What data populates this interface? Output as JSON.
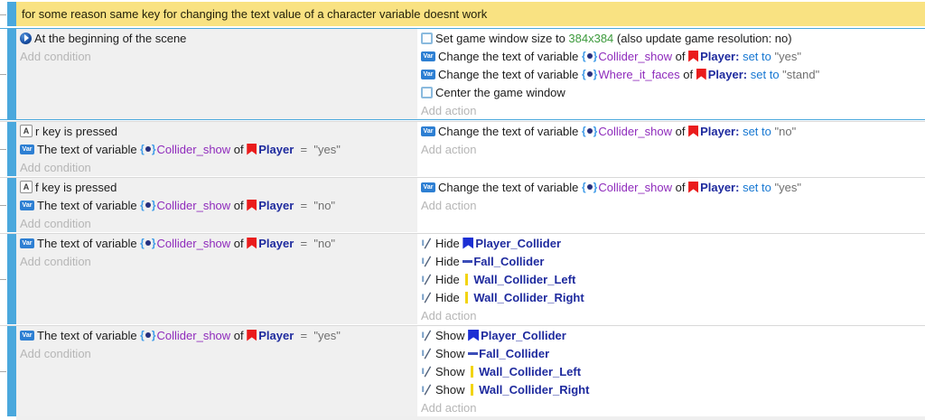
{
  "comment": {
    "text": "for some reason same key for changing the text value of a character variable doesnt work"
  },
  "labels": {
    "add_condition": "Add condition",
    "add_action": "Add action"
  },
  "icon_labels": {
    "var_badge": "Var",
    "keyboard_key": "A"
  },
  "colors": {
    "accent_blue": "#4aa8dd",
    "comment_bg": "#f9e282",
    "condition_bg": "#f0f0f0",
    "action_bg": "#ffffff",
    "variable_purple": "#8f2bbc",
    "object_navy": "#1e2a9e",
    "set_to_blue": "#1677d2",
    "value_gray": "#6f6f6f",
    "size_green": "#3c9a3c",
    "placeholder_gray": "#b6b6b6",
    "player_red": "#ea1c1c",
    "player_collider_blue": "#1c2fd4",
    "fall_collider_blue": "#3b4db8",
    "wall_collider_yellow": "#f2d411"
  },
  "events": [
    {
      "selected": true,
      "conditions": [
        {
          "runs": [
            {
              "icon": "scene-start-icon"
            },
            {
              "t": "At the beginning of the scene",
              "s": "plain"
            }
          ]
        }
      ],
      "actions": [
        {
          "runs": [
            {
              "icon": "window-icon"
            },
            {
              "t": "Set game window size to ",
              "s": "plain"
            },
            {
              "t": "384x384",
              "s": "green"
            },
            {
              "t": " (also update game resolution: no)",
              "s": "plain"
            }
          ]
        },
        {
          "runs": [
            {
              "icon": "var-badge-icon"
            },
            {
              "t": "Change the text of variable ",
              "s": "plain"
            },
            {
              "icon": "variable-icon"
            },
            {
              "t": "Collider_show",
              "s": "variable"
            },
            {
              "t": " of ",
              "s": "plain"
            },
            {
              "icon": "player-flag-icon"
            },
            {
              "t": "Player:",
              "s": "object"
            },
            {
              "t": " ",
              "s": "plain"
            },
            {
              "t": "set to",
              "s": "setto"
            },
            {
              "t": " ",
              "s": "plain"
            },
            {
              "t": "\"yes\"",
              "s": "value"
            }
          ]
        },
        {
          "runs": [
            {
              "icon": "var-badge-icon"
            },
            {
              "t": "Change the text of variable ",
              "s": "plain"
            },
            {
              "icon": "variable-icon"
            },
            {
              "t": "Where_it_faces",
              "s": "variable"
            },
            {
              "t": " of ",
              "s": "plain"
            },
            {
              "icon": "player-flag-icon"
            },
            {
              "t": "Player:",
              "s": "object"
            },
            {
              "t": " ",
              "s": "plain"
            },
            {
              "t": "set to",
              "s": "setto"
            },
            {
              "t": " ",
              "s": "plain"
            },
            {
              "t": "\"stand\"",
              "s": "value"
            }
          ]
        },
        {
          "runs": [
            {
              "icon": "window-icon"
            },
            {
              "t": "Center the game window",
              "s": "plain"
            }
          ]
        }
      ]
    },
    {
      "selected": false,
      "conditions": [
        {
          "runs": [
            {
              "icon": "keyboard-a-icon"
            },
            {
              "t": "r key is pressed",
              "s": "plain"
            }
          ]
        },
        {
          "runs": [
            {
              "icon": "var-badge-icon"
            },
            {
              "t": "The text of variable ",
              "s": "plain"
            },
            {
              "icon": "variable-icon"
            },
            {
              "t": "Collider_show",
              "s": "variable"
            },
            {
              "t": " of ",
              "s": "plain"
            },
            {
              "icon": "player-flag-icon"
            },
            {
              "t": "Player",
              "s": "object"
            },
            {
              "t": "  =  ",
              "s": "operator"
            },
            {
              "t": "\"yes\"",
              "s": "value"
            }
          ]
        }
      ],
      "actions": [
        {
          "runs": [
            {
              "icon": "var-badge-icon"
            },
            {
              "t": "Change the text of variable ",
              "s": "plain"
            },
            {
              "icon": "variable-icon"
            },
            {
              "t": "Collider_show",
              "s": "variable"
            },
            {
              "t": " of ",
              "s": "plain"
            },
            {
              "icon": "player-flag-icon"
            },
            {
              "t": "Player:",
              "s": "object"
            },
            {
              "t": " ",
              "s": "plain"
            },
            {
              "t": "set to",
              "s": "setto"
            },
            {
              "t": " ",
              "s": "plain"
            },
            {
              "t": "\"no\"",
              "s": "value"
            }
          ]
        }
      ]
    },
    {
      "selected": false,
      "conditions": [
        {
          "runs": [
            {
              "icon": "keyboard-a-icon"
            },
            {
              "t": "f key is pressed",
              "s": "plain"
            }
          ]
        },
        {
          "runs": [
            {
              "icon": "var-badge-icon"
            },
            {
              "t": "The text of variable ",
              "s": "plain"
            },
            {
              "icon": "variable-icon"
            },
            {
              "t": "Collider_show",
              "s": "variable"
            },
            {
              "t": " of ",
              "s": "plain"
            },
            {
              "icon": "player-flag-icon"
            },
            {
              "t": "Player",
              "s": "object"
            },
            {
              "t": "  =  ",
              "s": "operator"
            },
            {
              "t": "\"no\"",
              "s": "value"
            }
          ]
        }
      ],
      "actions": [
        {
          "runs": [
            {
              "icon": "var-badge-icon"
            },
            {
              "t": "Change the text of variable ",
              "s": "plain"
            },
            {
              "icon": "variable-icon"
            },
            {
              "t": "Collider_show",
              "s": "variable"
            },
            {
              "t": " of ",
              "s": "plain"
            },
            {
              "icon": "player-flag-icon"
            },
            {
              "t": "Player:",
              "s": "object"
            },
            {
              "t": " ",
              "s": "plain"
            },
            {
              "t": "set to",
              "s": "setto"
            },
            {
              "t": " ",
              "s": "plain"
            },
            {
              "t": "\"yes\"",
              "s": "value"
            }
          ]
        }
      ]
    },
    {
      "selected": false,
      "conditions": [
        {
          "runs": [
            {
              "icon": "var-badge-icon"
            },
            {
              "t": "The text of variable ",
              "s": "plain"
            },
            {
              "icon": "variable-icon"
            },
            {
              "t": "Collider_show",
              "s": "variable"
            },
            {
              "t": " of ",
              "s": "plain"
            },
            {
              "icon": "player-flag-icon"
            },
            {
              "t": "Player",
              "s": "object"
            },
            {
              "t": "  =  ",
              "s": "operator"
            },
            {
              "t": "\"no\"",
              "s": "value"
            }
          ]
        }
      ],
      "actions": [
        {
          "runs": [
            {
              "icon": "visibility-icon"
            },
            {
              "t": "Hide ",
              "s": "plain"
            },
            {
              "icon": "player-collider-icon"
            },
            {
              "t": "Player_Collider",
              "s": "object"
            }
          ]
        },
        {
          "runs": [
            {
              "icon": "visibility-icon"
            },
            {
              "t": "Hide ",
              "s": "plain"
            },
            {
              "icon": "fall-collider-icon"
            },
            {
              "t": "Fall_Collider",
              "s": "object"
            }
          ]
        },
        {
          "runs": [
            {
              "icon": "visibility-icon"
            },
            {
              "t": "Hide ",
              "s": "plain"
            },
            {
              "icon": "wall-collider-icon"
            },
            {
              "t": "Wall_Collider_Left",
              "s": "object"
            }
          ]
        },
        {
          "runs": [
            {
              "icon": "visibility-icon"
            },
            {
              "t": "Hide ",
              "s": "plain"
            },
            {
              "icon": "wall-collider-icon"
            },
            {
              "t": "Wall_Collider_Right",
              "s": "object"
            }
          ]
        }
      ]
    },
    {
      "selected": false,
      "conditions": [
        {
          "runs": [
            {
              "icon": "var-badge-icon"
            },
            {
              "t": "The text of variable ",
              "s": "plain"
            },
            {
              "icon": "variable-icon"
            },
            {
              "t": "Collider_show",
              "s": "variable"
            },
            {
              "t": " of ",
              "s": "plain"
            },
            {
              "icon": "player-flag-icon"
            },
            {
              "t": "Player",
              "s": "object"
            },
            {
              "t": "  =  ",
              "s": "operator"
            },
            {
              "t": "\"yes\"",
              "s": "value"
            }
          ]
        }
      ],
      "actions": [
        {
          "runs": [
            {
              "icon": "visibility-icon"
            },
            {
              "t": "Show ",
              "s": "plain"
            },
            {
              "icon": "player-collider-icon"
            },
            {
              "t": "Player_Collider",
              "s": "object"
            }
          ]
        },
        {
          "runs": [
            {
              "icon": "visibility-icon"
            },
            {
              "t": "Show ",
              "s": "plain"
            },
            {
              "icon": "fall-collider-icon"
            },
            {
              "t": "Fall_Collider",
              "s": "object"
            }
          ]
        },
        {
          "runs": [
            {
              "icon": "visibility-icon"
            },
            {
              "t": "Show ",
              "s": "plain"
            },
            {
              "icon": "wall-collider-icon"
            },
            {
              "t": "Wall_Collider_Left",
              "s": "object"
            }
          ]
        },
        {
          "runs": [
            {
              "icon": "visibility-icon"
            },
            {
              "t": "Show ",
              "s": "plain"
            },
            {
              "icon": "wall-collider-icon"
            },
            {
              "t": "Wall_Collider_Right",
              "s": "object"
            }
          ]
        }
      ]
    }
  ]
}
